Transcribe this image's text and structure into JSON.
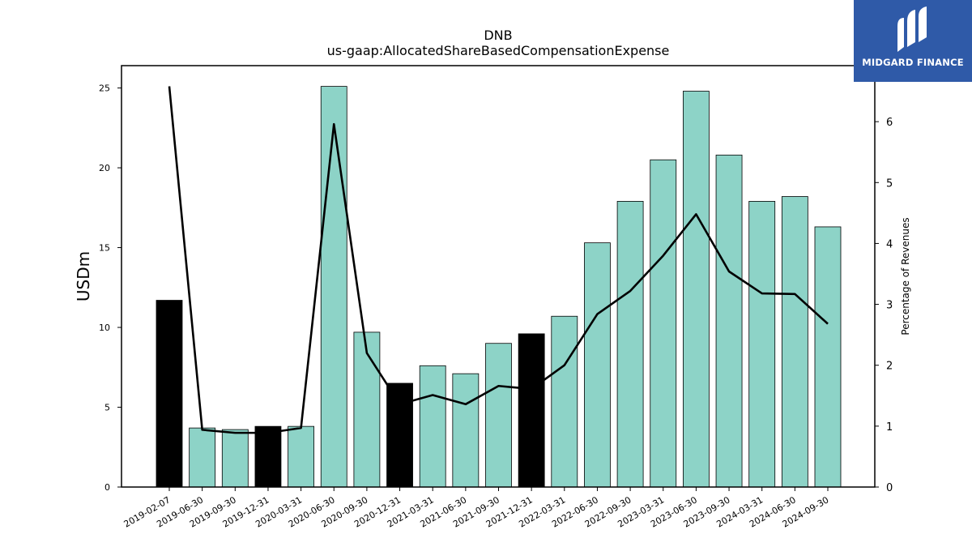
{
  "logo": {
    "text": "MIDGARD FINANCE",
    "icon": "midgard-logo-icon",
    "background": "#2f5aa8"
  },
  "chart_data": {
    "type": "bar",
    "title": "DNB",
    "subtitle": "us-gaap:AllocatedShareBasedCompensationExpense",
    "ylabel": "USDm",
    "y2label": "Percentage of Revenues",
    "ylim": [
      0,
      26.4
    ],
    "y2lim": [
      0,
      6.92
    ],
    "yticks": [
      0,
      5,
      10,
      15,
      20,
      25
    ],
    "y2ticks": [
      0,
      1,
      2,
      3,
      4,
      5,
      6
    ],
    "categories": [
      "2019-02-07",
      "2019-06-30",
      "2019-09-30",
      "2019-12-31",
      "2020-03-31",
      "2020-06-30",
      "2020-09-30",
      "2020-12-31",
      "2021-03-31",
      "2021-06-30",
      "2021-09-30",
      "2021-12-31",
      "2022-03-31",
      "2022-06-30",
      "2022-09-30",
      "2023-03-31",
      "2023-06-30",
      "2023-09-30",
      "2024-03-31",
      "2024-06-30",
      "2024-09-30"
    ],
    "series": [
      {
        "type": "bar",
        "axis": "left",
        "values": [
          11.7,
          3.7,
          3.6,
          3.8,
          3.8,
          25.1,
          9.7,
          6.5,
          7.6,
          7.1,
          9.0,
          9.6,
          10.7,
          15.3,
          17.9,
          20.5,
          24.8,
          20.8,
          17.9,
          18.2,
          16.3
        ],
        "colors": [
          "#000000",
          "#8dd3c7",
          "#8dd3c7",
          "#000000",
          "#8dd3c7",
          "#8dd3c7",
          "#8dd3c7",
          "#000000",
          "#8dd3c7",
          "#8dd3c7",
          "#8dd3c7",
          "#000000",
          "#8dd3c7",
          "#8dd3c7",
          "#8dd3c7",
          "#8dd3c7",
          "#8dd3c7",
          "#8dd3c7",
          "#8dd3c7",
          "#8dd3c7",
          "#8dd3c7"
        ]
      },
      {
        "type": "line",
        "axis": "right",
        "color": "#000000",
        "values": [
          6.58,
          0.94,
          0.89,
          0.89,
          0.97,
          5.96,
          2.2,
          1.36,
          1.51,
          1.36,
          1.66,
          1.61,
          2.0,
          2.84,
          3.22,
          3.8,
          4.48,
          3.54,
          3.18,
          3.17,
          2.68
        ]
      }
    ],
    "legend": "none",
    "grid": false
  }
}
